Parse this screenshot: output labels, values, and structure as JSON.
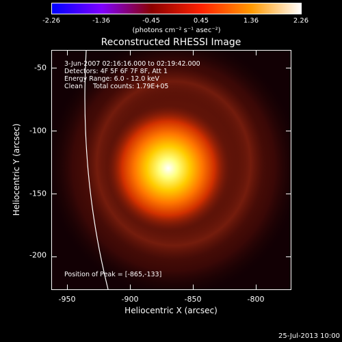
{
  "colorbar": {
    "ticks": [
      "-2.26",
      "-1.36",
      "-0.45",
      "0.45",
      "1.36",
      "2.26"
    ],
    "units": "(photons cm⁻² s⁻¹ asec⁻²)",
    "colors": [
      "#0000ff",
      "#7f00ff",
      "#8b0000",
      "#ff2200",
      "#ff9900",
      "#ffffff"
    ]
  },
  "title": "Reconstructed RHESSI Image",
  "info": {
    "time_range": "3-Jun-2007 02:16:16.000 to 02:19:42.000",
    "detectors": "Detectors: 4F 5F 6F 7F 8F, Att 1",
    "energy": "Energy Range: 6.0 - 12.0 keV",
    "clean": "Clean     Total counts: 1.79E+05"
  },
  "peak": "Position of Peak = [-865,-133]",
  "axes": {
    "xlabel": "Heliocentric X (arcsec)",
    "ylabel": "Heliocentric Y (arcsec)",
    "xticks": [
      "-950",
      "-900",
      "-850",
      "-800"
    ],
    "yticks": [
      "-50",
      "-100",
      "-150",
      "-200"
    ],
    "xlim": [
      -960,
      -790
    ],
    "ylim": [
      -228,
      -38
    ]
  },
  "footer": {
    "date": "25-Jul-2013 10:00"
  }
}
